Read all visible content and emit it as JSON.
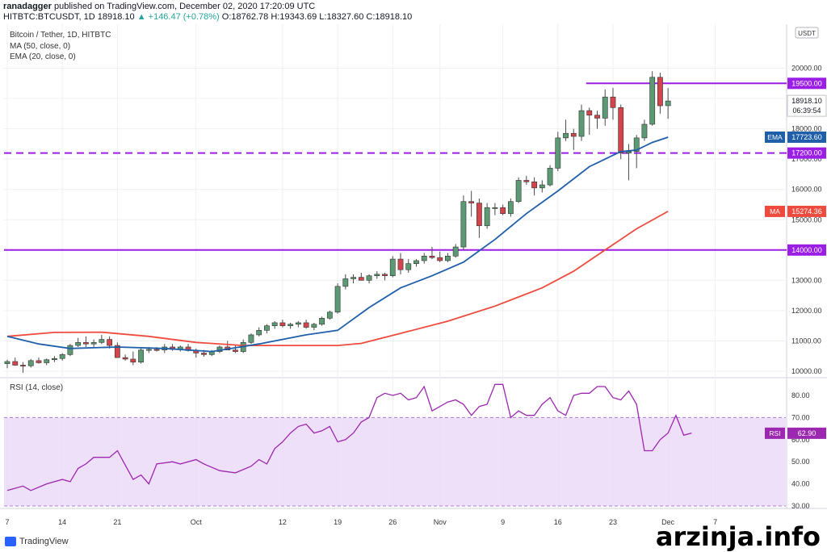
{
  "header": {
    "line1_user": "ranadagger",
    "line1_rest": " published on TradingView.com, December 02, 2020 17:20:09 UTC",
    "line2_symbol": "HITBTC:BTCUSDT, 1D",
    "line2_price": "18918.10",
    "line2_change": "▲ +146.47 (+0.78%)",
    "line2_ohlc": "O:18762.78 H:19343.69 L:18327.60 C:18918.10"
  },
  "legend": {
    "title": "Bitcoin / Tether, 1D, HITBTC",
    "ma": "MA (50, close, 0)",
    "ema": "EMA (20, close, 0)",
    "rsi": "RSI (14, close)"
  },
  "footer": {
    "brand": "TradingView",
    "watermark": "arzinja.info"
  },
  "colors": {
    "up": "#5b9a72",
    "down": "#d2454b",
    "ema": "#1f5faa",
    "ma": "#ee4b3e",
    "level": "#9a1ee6",
    "rsi": "#9c27b0",
    "rsi_band": "#ead6f7"
  },
  "chart_data": [
    {
      "type": "candlestick",
      "title": "Bitcoin / Tether, 1D, HITBTC",
      "ylabel": "USDT",
      "ylim": [
        9500,
        20300
      ],
      "yticks": [
        10000,
        11000,
        12000,
        13000,
        14000,
        15000,
        16000,
        17000,
        18000,
        19000,
        20000
      ],
      "xticks": [
        {
          "label": "7",
          "i": 0
        },
        {
          "label": "14",
          "i": 7
        },
        {
          "label": "21",
          "i": 14
        },
        {
          "label": "Oct",
          "i": 24
        },
        {
          "label": "12",
          "i": 35
        },
        {
          "label": "19",
          "i": 42
        },
        {
          "label": "26",
          "i": 49
        },
        {
          "label": "Nov",
          "i": 55
        },
        {
          "label": "9",
          "i": 63
        },
        {
          "label": "16",
          "i": 70
        },
        {
          "label": "23",
          "i": 77
        },
        {
          "label": "Dec",
          "i": 84
        },
        {
          "label": "7",
          "i": 90
        }
      ],
      "levels": [
        {
          "label": "19500.00",
          "value": 19500,
          "style": "solid",
          "start_i": 74
        },
        {
          "label": "17200.00",
          "value": 17200,
          "style": "dashed"
        },
        {
          "label": "14000.00",
          "value": 14000,
          "style": "solid"
        }
      ],
      "value_labels": [
        {
          "label": "18918.10",
          "sub": "06:39:54",
          "value": 18918.1,
          "kind": "price"
        },
        {
          "label": "17723.60",
          "value": 17723.6,
          "kind": "ema",
          "tag": "EMA"
        },
        {
          "label": "15274.36",
          "value": 15274.36,
          "kind": "ma",
          "tag": "MA"
        }
      ],
      "ohlc": [
        [
          10250,
          10380,
          10100,
          10320
        ],
        [
          10320,
          10450,
          10180,
          10200
        ],
        [
          10200,
          10300,
          9950,
          10180
        ],
        [
          10180,
          10400,
          10120,
          10350
        ],
        [
          10350,
          10450,
          10250,
          10280
        ],
        [
          10280,
          10420,
          10200,
          10380
        ],
        [
          10380,
          10500,
          10300,
          10420
        ],
        [
          10420,
          10600,
          10350,
          10550
        ],
        [
          10550,
          10900,
          10500,
          10850
        ],
        [
          10850,
          11100,
          10800,
          10950
        ],
        [
          10950,
          11150,
          10800,
          10900
        ],
        [
          10900,
          11050,
          10800,
          10950
        ],
        [
          10950,
          11200,
          10900,
          11050
        ],
        [
          11050,
          11150,
          10750,
          10850
        ],
        [
          10850,
          10950,
          10550,
          10450
        ],
        [
          10450,
          10550,
          10350,
          10400
        ],
        [
          10400,
          10650,
          10200,
          10300
        ],
        [
          10300,
          10800,
          10250,
          10700
        ],
        [
          10700,
          10800,
          10600,
          10720
        ],
        [
          10720,
          10800,
          10650,
          10700
        ],
        [
          10700,
          10900,
          10600,
          10800
        ],
        [
          10800,
          10900,
          10680,
          10720
        ],
        [
          10720,
          10850,
          10650,
          10800
        ],
        [
          10800,
          10900,
          10650,
          10680
        ],
        [
          10680,
          10750,
          10450,
          10600
        ],
        [
          10600,
          10700,
          10480,
          10550
        ],
        [
          10550,
          10700,
          10500,
          10650
        ],
        [
          10650,
          10850,
          10600,
          10800
        ],
        [
          10800,
          11000,
          10700,
          10700
        ],
        [
          10700,
          10850,
          10600,
          10650
        ],
        [
          10650,
          11050,
          10600,
          10950
        ],
        [
          10950,
          11250,
          10900,
          11200
        ],
        [
          11200,
          11450,
          11150,
          11350
        ],
        [
          11350,
          11550,
          11250,
          11500
        ],
        [
          11500,
          11650,
          11400,
          11600
        ],
        [
          11600,
          11700,
          11450,
          11500
        ],
        [
          11500,
          11600,
          11400,
          11550
        ],
        [
          11550,
          11650,
          11450,
          11600
        ],
        [
          11600,
          11700,
          11400,
          11450
        ],
        [
          11450,
          11600,
          11350,
          11550
        ],
        [
          11550,
          11800,
          11500,
          11750
        ],
        [
          11750,
          12000,
          11700,
          11950
        ],
        [
          11950,
          12900,
          11900,
          12800
        ],
        [
          12800,
          13200,
          12700,
          13050
        ],
        [
          13050,
          13200,
          12900,
          13100
        ],
        [
          13100,
          13250,
          13000,
          13000
        ],
        [
          13000,
          13200,
          12900,
          13150
        ],
        [
          13150,
          13300,
          13050,
          13200
        ],
        [
          13200,
          13250,
          13000,
          13150
        ],
        [
          13150,
          13800,
          13100,
          13700
        ],
        [
          13700,
          13900,
          13200,
          13350
        ],
        [
          13350,
          13700,
          13250,
          13550
        ],
        [
          13550,
          13700,
          13450,
          13650
        ],
        [
          13650,
          13900,
          13550,
          13800
        ],
        [
          13800,
          14100,
          13700,
          13750
        ],
        [
          13750,
          13950,
          13600,
          13650
        ],
        [
          13650,
          13900,
          13600,
          13800
        ],
        [
          13800,
          14200,
          13750,
          14100
        ],
        [
          14100,
          15800,
          14000,
          15600
        ],
        [
          15600,
          15950,
          15100,
          15550
        ],
        [
          15550,
          15700,
          14400,
          14800
        ],
        [
          14800,
          15550,
          14700,
          15400
        ],
        [
          15400,
          15550,
          15150,
          15400
        ],
        [
          15400,
          15500,
          15150,
          15200
        ],
        [
          15200,
          15700,
          15100,
          15600
        ],
        [
          15600,
          16400,
          15550,
          16300
        ],
        [
          16300,
          16450,
          16150,
          16250
        ],
        [
          16250,
          16400,
          15800,
          16050
        ],
        [
          16050,
          16300,
          15900,
          16150
        ],
        [
          16150,
          16800,
          16100,
          16700
        ],
        [
          16700,
          17900,
          16600,
          17700
        ],
        [
          17700,
          18300,
          17600,
          17850
        ],
        [
          17850,
          18000,
          17300,
          17750
        ],
        [
          17750,
          18800,
          17600,
          18600
        ],
        [
          18600,
          18700,
          17800,
          18450
        ],
        [
          18450,
          18600,
          18000,
          18350
        ],
        [
          18350,
          19300,
          18100,
          19050
        ],
        [
          19050,
          19350,
          18300,
          18700
        ],
        [
          18700,
          18800,
          17000,
          17200
        ],
        [
          17200,
          17500,
          16300,
          17250
        ],
        [
          17250,
          17800,
          16700,
          17700
        ],
        [
          17700,
          18300,
          17600,
          18150
        ],
        [
          18150,
          19900,
          18100,
          19700
        ],
        [
          19700,
          19850,
          18500,
          18760
        ],
        [
          18762.78,
          19343.69,
          18327.6,
          18918.1
        ]
      ],
      "series": [
        {
          "name": "MA (50, close, 0)",
          "values": [
            [
              0,
              11150
            ],
            [
              6,
              11280
            ],
            [
              12,
              11290
            ],
            [
              18,
              11150
            ],
            [
              24,
              10950
            ],
            [
              30,
              10850
            ],
            [
              36,
              10850
            ],
            [
              42,
              10850
            ],
            [
              45,
              10920
            ],
            [
              50,
              11250
            ],
            [
              56,
              11650
            ],
            [
              62,
              12150
            ],
            [
              68,
              12750
            ],
            [
              72,
              13300
            ],
            [
              76,
              14000
            ],
            [
              80,
              14700
            ],
            [
              84,
              15274.36
            ]
          ]
        },
        {
          "name": "EMA (20, close, 0)",
          "values": [
            [
              0,
              11150
            ],
            [
              4,
              10900
            ],
            [
              8,
              10750
            ],
            [
              14,
              10800
            ],
            [
              20,
              10750
            ],
            [
              26,
              10650
            ],
            [
              32,
              10900
            ],
            [
              38,
              11200
            ],
            [
              42,
              11350
            ],
            [
              46,
              12100
            ],
            [
              50,
              12750
            ],
            [
              54,
              13150
            ],
            [
              58,
              13600
            ],
            [
              62,
              14350
            ],
            [
              66,
              15200
            ],
            [
              70,
              15950
            ],
            [
              74,
              16750
            ],
            [
              78,
              17250
            ],
            [
              80,
              17300
            ],
            [
              82,
              17550
            ],
            [
              84,
              17723.6
            ]
          ]
        }
      ]
    },
    {
      "type": "line",
      "title": "RSI (14, close)",
      "ylim": [
        27,
        86
      ],
      "yticks": [
        30,
        40,
        50,
        60,
        70,
        80
      ],
      "band": [
        30,
        70
      ],
      "value_label": {
        "tag": "RSI",
        "label": "62.90",
        "value": 62.9
      },
      "series": [
        {
          "name": "RSI (14, close)",
          "values": [
            [
              0,
              37
            ],
            [
              2,
              39
            ],
            [
              3,
              37
            ],
            [
              5,
              40
            ],
            [
              7,
              42
            ],
            [
              8,
              41
            ],
            [
              9,
              47
            ],
            [
              10,
              49
            ],
            [
              11,
              52
            ],
            [
              13,
              52
            ],
            [
              14,
              55
            ],
            [
              16,
              42
            ],
            [
              17,
              44
            ],
            [
              18,
              40
            ],
            [
              19,
              49
            ],
            [
              21,
              50
            ],
            [
              22,
              49
            ],
            [
              24,
              51
            ],
            [
              25,
              49
            ],
            [
              27,
              46
            ],
            [
              29,
              45
            ],
            [
              31,
              48
            ],
            [
              32,
              51
            ],
            [
              33,
              49
            ],
            [
              34,
              56
            ],
            [
              35,
              59
            ],
            [
              36,
              63
            ],
            [
              37,
              66
            ],
            [
              38,
              67
            ],
            [
              39,
              63
            ],
            [
              40,
              64
            ],
            [
              41,
              66
            ],
            [
              42,
              59
            ],
            [
              43,
              60
            ],
            [
              44,
              63
            ],
            [
              45,
              68
            ],
            [
              46,
              70
            ],
            [
              47,
              79
            ],
            [
              48,
              81
            ],
            [
              49,
              80
            ],
            [
              50,
              81
            ],
            [
              51,
              78
            ],
            [
              52,
              79
            ],
            [
              53,
              84
            ],
            [
              54,
              73
            ],
            [
              55,
              75
            ],
            [
              56,
              77
            ],
            [
              57,
              78
            ],
            [
              58,
              76
            ],
            [
              59,
              71
            ],
            [
              60,
              75
            ],
            [
              61,
              76
            ],
            [
              62,
              85
            ],
            [
              63,
              85
            ],
            [
              64,
              70
            ],
            [
              65,
              73
            ],
            [
              66,
              71
            ],
            [
              67,
              71
            ],
            [
              68,
              76
            ],
            [
              69,
              79
            ],
            [
              70,
              73
            ],
            [
              71,
              71
            ],
            [
              72,
              80
            ],
            [
              73,
              81
            ],
            [
              74,
              81
            ],
            [
              75,
              84
            ],
            [
              76,
              84
            ],
            [
              77,
              79
            ],
            [
              78,
              78
            ],
            [
              79,
              82
            ],
            [
              80,
              76
            ],
            [
              81,
              55
            ],
            [
              82,
              55
            ],
            [
              83,
              60
            ],
            [
              84,
              63
            ],
            [
              85,
              71
            ],
            [
              86,
              62
            ],
            [
              87,
              63
            ]
          ]
        }
      ]
    }
  ]
}
